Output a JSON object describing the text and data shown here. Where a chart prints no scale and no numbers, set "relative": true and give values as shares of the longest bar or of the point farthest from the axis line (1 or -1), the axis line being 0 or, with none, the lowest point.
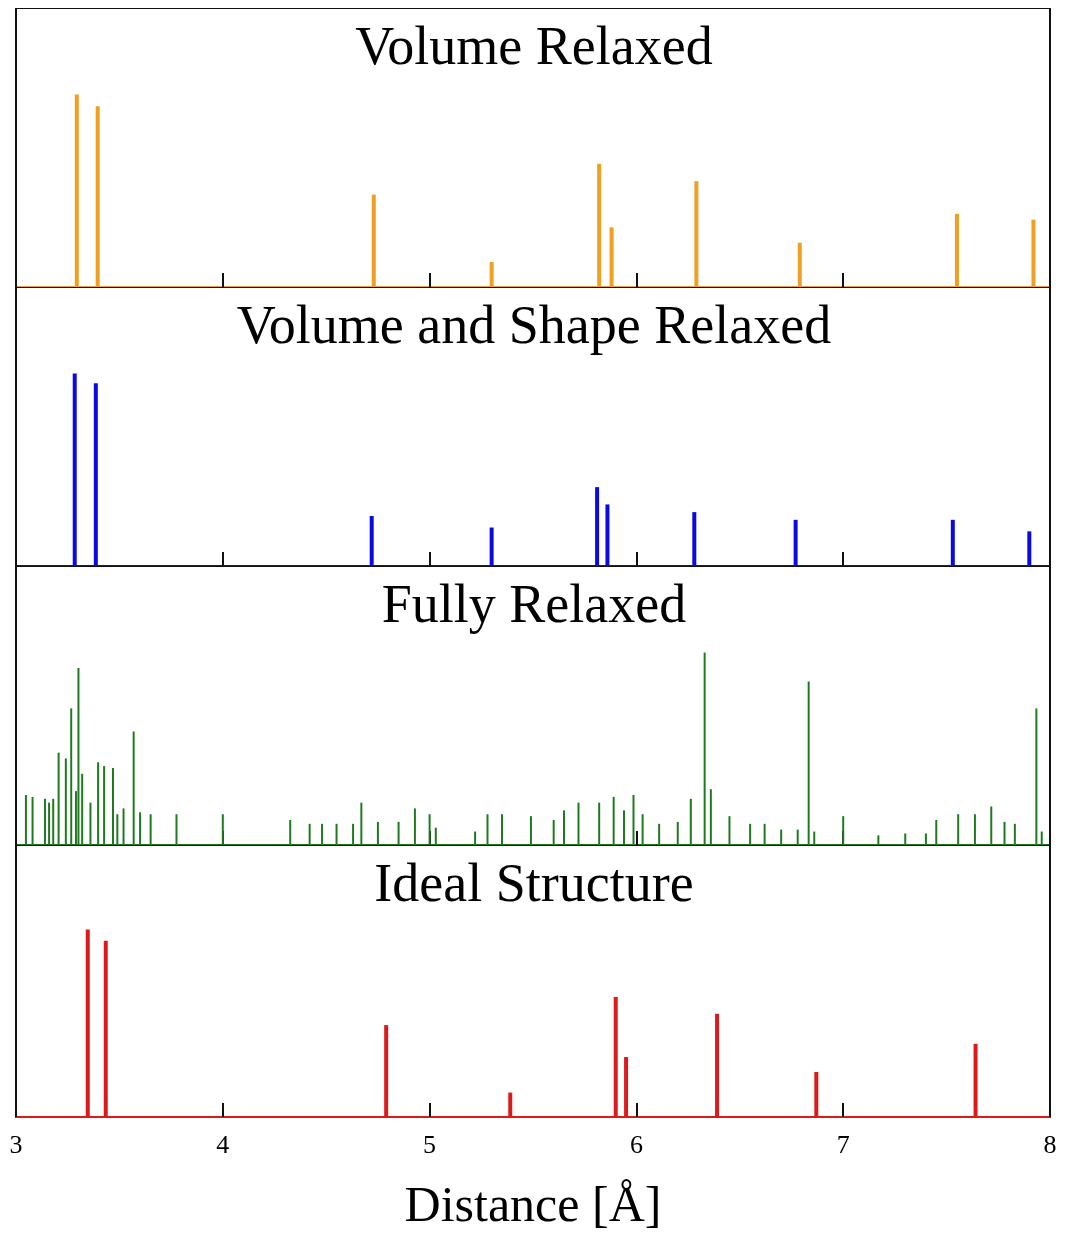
{
  "chart_data": [
    {
      "type": "bar",
      "title": "Volume Relaxed",
      "relative": true,
      "xlim": [
        3,
        8
      ],
      "xticks": [
        3,
        4,
        5,
        6,
        7,
        8
      ],
      "tick_labels": false,
      "grid": false,
      "series": [
        {
          "color": "#f0a020",
          "x": [
            3.294,
            3.395,
            4.73,
            5.3,
            5.82,
            5.88,
            6.29,
            6.79,
            7.55,
            7.92
          ],
          "values": [
            1,
            0.94,
            0.48,
            0.13,
            0.64,
            0.31,
            0.55,
            0.23,
            0.38,
            0.35
          ]
        }
      ]
    },
    {
      "type": "bar",
      "title": "Volume and Shape Relaxed",
      "relative": true,
      "xlim": [
        3,
        8
      ],
      "xticks": [
        3,
        4,
        5,
        6,
        7,
        8
      ],
      "tick_labels": false,
      "grid": false,
      "series": [
        {
          "color": "#0a0ae0",
          "x": [
            3.284,
            3.386,
            4.72,
            5.3,
            5.81,
            5.86,
            6.28,
            6.77,
            7.53,
            7.9
          ],
          "values": [
            1,
            0.95,
            0.26,
            0.2,
            0.41,
            0.32,
            0.28,
            0.24,
            0.24,
            0.18
          ]
        }
      ]
    },
    {
      "type": "bar",
      "title": "Fully Relaxed",
      "relative": true,
      "xlim": [
        3,
        8
      ],
      "xticks": [
        3,
        4,
        5,
        6,
        7,
        8
      ],
      "tick_labels": false,
      "grid": false,
      "series": [
        {
          "color": "#1f7a1f",
          "x": [
            3.048,
            3.08,
            3.14,
            3.16,
            3.18,
            3.206,
            3.241,
            3.267,
            3.29,
            3.302,
            3.32,
            3.36,
            3.397,
            3.426,
            3.469,
            3.49,
            3.52,
            3.569,
            3.6,
            3.651,
            3.776,
            4.0,
            4.326,
            4.42,
            4.48,
            4.55,
            4.63,
            4.67,
            4.75,
            4.85,
            4.929,
            5.0,
            5.03,
            5.22,
            5.28,
            5.35,
            5.49,
            5.6,
            5.65,
            5.72,
            5.82,
            5.89,
            5.94,
            5.986,
            6.03,
            6.11,
            6.2,
            6.263,
            6.33,
            6.36,
            6.45,
            6.55,
            6.62,
            6.7,
            6.78,
            6.833,
            6.86,
            7.0,
            7.17,
            7.3,
            7.4,
            7.45,
            7.556,
            7.637,
            7.716,
            7.78,
            7.83,
            7.934,
            7.96
          ],
          "values": [
            0.26,
            0.25,
            0.24,
            0.22,
            0.24,
            0.48,
            0.45,
            0.71,
            0.28,
            0.92,
            0.37,
            0.22,
            0.43,
            0.41,
            0.4,
            0.16,
            0.19,
            0.59,
            0.17,
            0.16,
            0.16,
            0.16,
            0.13,
            0.11,
            0.11,
            0.11,
            0.11,
            0.22,
            0.12,
            0.12,
            0.19,
            0.16,
            0.09,
            0.07,
            0.16,
            0.16,
            0.15,
            0.13,
            0.18,
            0.22,
            0.22,
            0.25,
            0.18,
            0.26,
            0.16,
            0.11,
            0.12,
            0.24,
            1,
            0.29,
            0.15,
            0.11,
            0.11,
            0.08,
            0.08,
            0.85,
            0.07,
            0.15,
            0.05,
            0.06,
            0.06,
            0.13,
            0.16,
            0.16,
            0.2,
            0.12,
            0.11,
            0.71,
            0.07
          ]
        }
      ]
    },
    {
      "type": "bar",
      "title": "Ideal Structure",
      "relative": true,
      "xlim": [
        3,
        8
      ],
      "xticks": [
        3,
        4,
        5,
        6,
        7,
        8
      ],
      "tick_labels": "x",
      "grid": false,
      "xlabel": "Distance [Å]",
      "series": [
        {
          "color": "#dd1a1a",
          "x": [
            3.347,
            3.434,
            4.79,
            5.39,
            5.9,
            5.95,
            6.39,
            6.87,
            7.64
          ],
          "values": [
            1,
            0.94,
            0.49,
            0.13,
            0.64,
            0.32,
            0.55,
            0.24,
            0.39
          ]
        }
      ]
    }
  ]
}
